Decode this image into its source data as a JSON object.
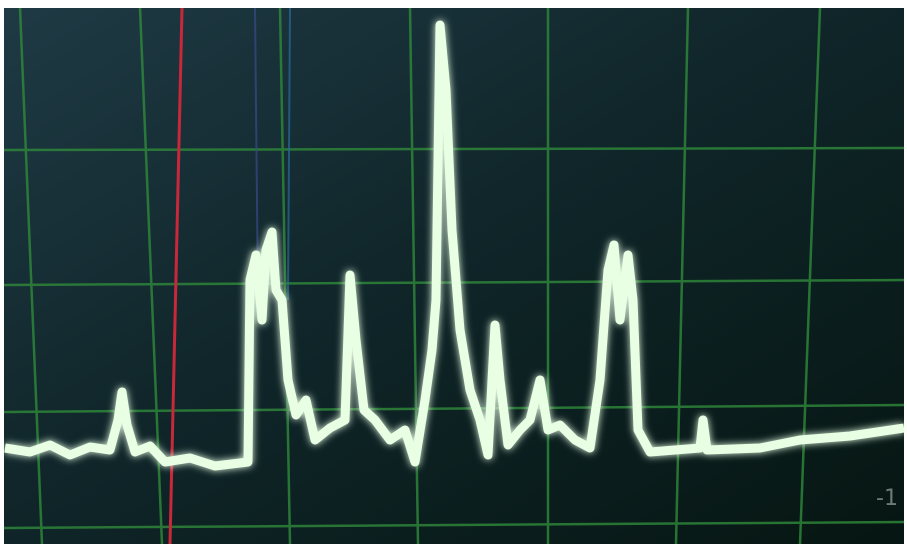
{
  "screen": {
    "corner_label": "-1"
  }
}
